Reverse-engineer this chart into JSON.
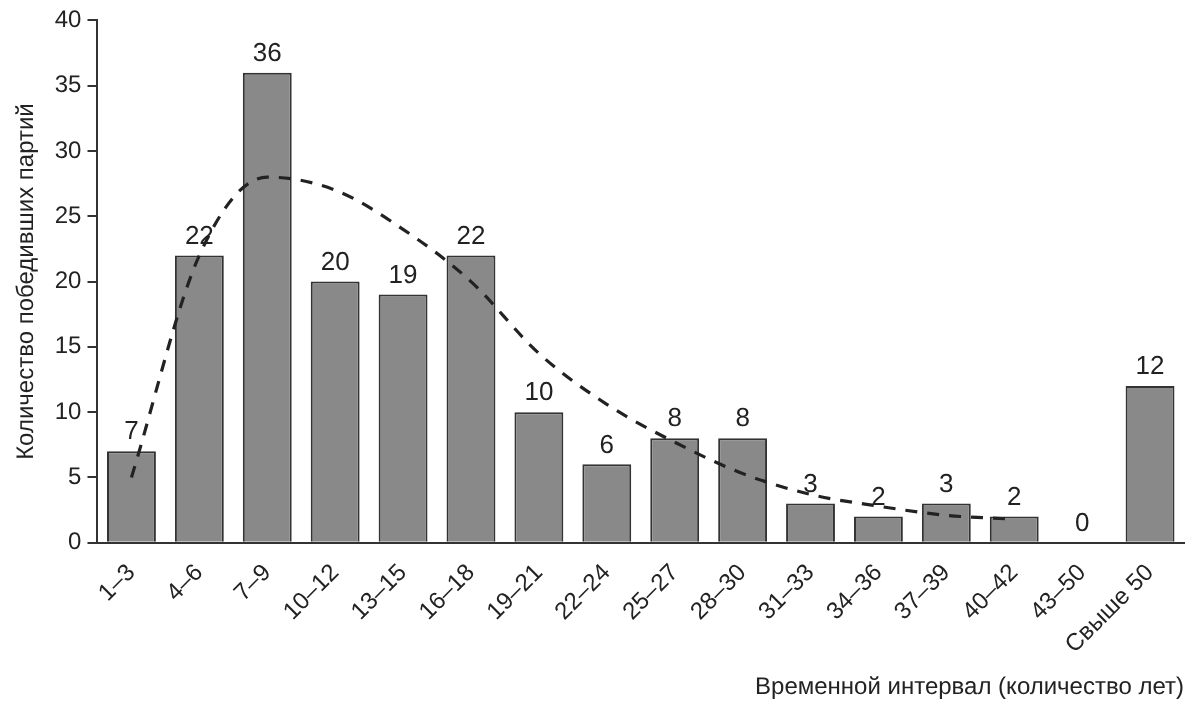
{
  "chart_data": {
    "type": "bar",
    "xlabel": "Временной интервал (количество лет)",
    "ylabel": "Количество победивших партий",
    "categories": [
      "1–3",
      "4–6",
      "7–9",
      "10–12",
      "13–15",
      "16–18",
      "19–21",
      "22–24",
      "25–27",
      "28–30",
      "31–33",
      "34–36",
      "37–39",
      "40–42",
      "43–50",
      "Свыше 50"
    ],
    "ylim": [
      0,
      40
    ],
    "yticks": [
      0,
      5,
      10,
      15,
      20,
      25,
      30,
      35,
      40
    ],
    "grid": false,
    "legend": false,
    "series": [
      {
        "color": "#898989",
        "values": [
          7,
          22,
          36,
          20,
          19,
          22,
          10,
          6,
          8,
          8,
          3,
          2,
          3,
          2,
          0,
          12
        ],
        "data_labels": true
      },
      {
        "type": "line",
        "color": "#222222",
        "line_style": "dashed",
        "marker": "none",
        "x": [
          "1–3",
          "4–6",
          "7–9",
          "10–12",
          "13–15",
          "16–18",
          "19–21",
          "22–24",
          "25–27",
          "28–30",
          "31–33",
          "34–36",
          "37–39",
          "40–42"
        ],
        "values": [
          5,
          22,
          28,
          27,
          24,
          20,
          14.5,
          10.6,
          7.7,
          5.3,
          3.7,
          2.8,
          2.1,
          1.8
        ]
      }
    ]
  }
}
